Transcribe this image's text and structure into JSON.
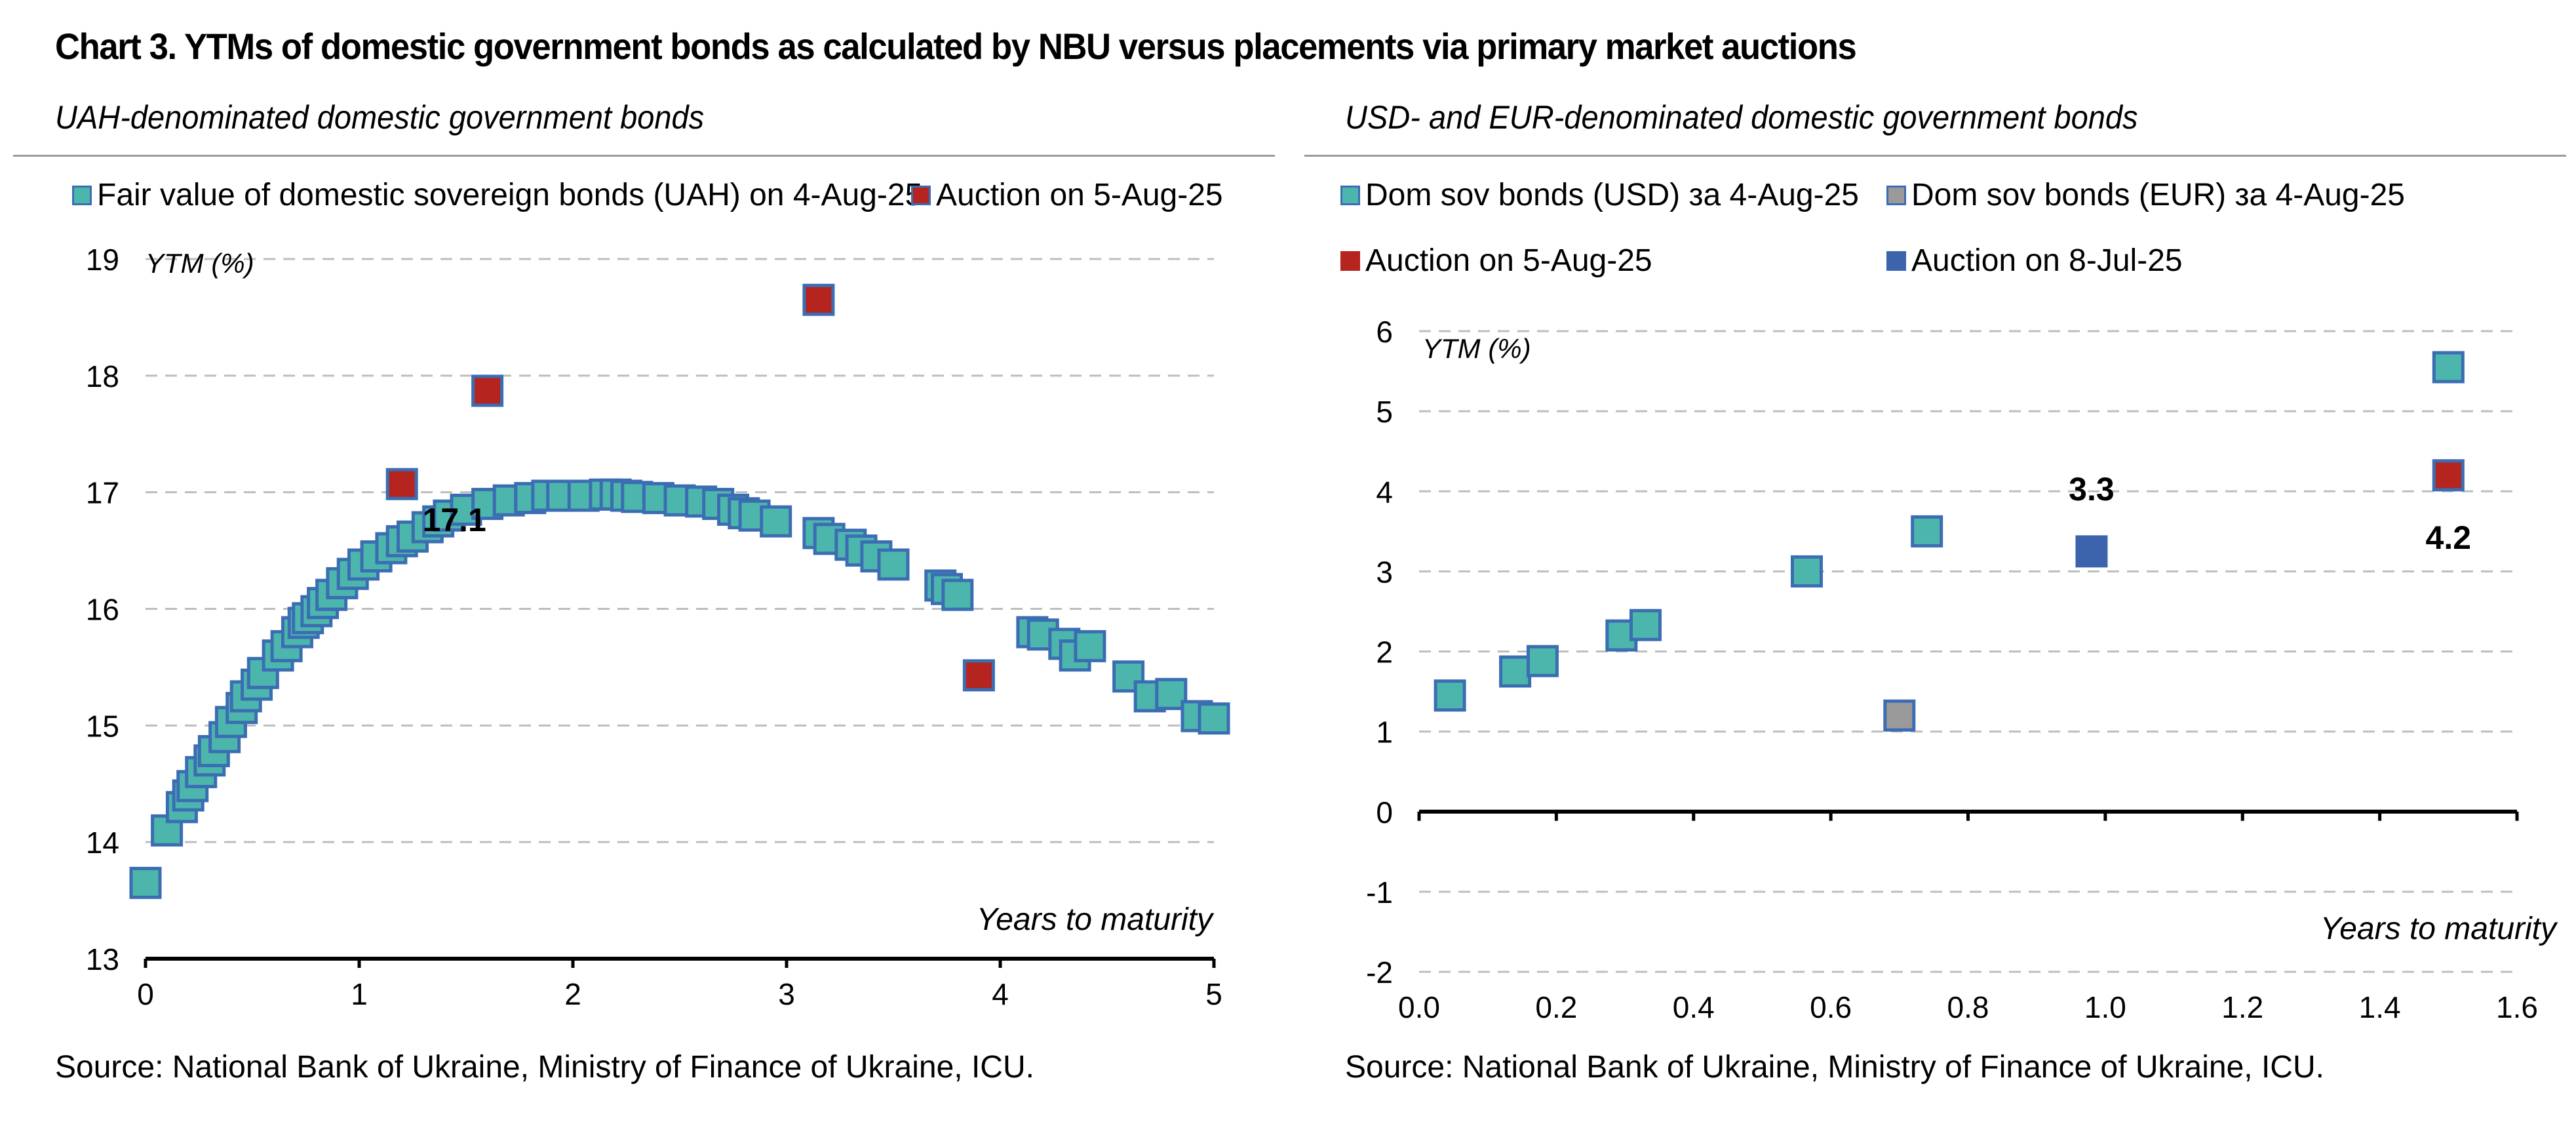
{
  "title": "Chart 3. YTMs of domestic government bonds as calculated by NBU versus placements via primary market auctions",
  "source_text": "Source: National Bank of Ukraine, Ministry of Finance of Ukraine, ICU.",
  "colors": {
    "fair_value": "#4db6ac",
    "marker_border": "#3b6db3",
    "auction_aug": "#b5241e",
    "auction_jul": "#3b64ad",
    "eur": "#9a9a9a",
    "grid": "#bdbdbd"
  },
  "chart_data": [
    {
      "type": "scatter",
      "title": "UAH-denominated domestic government bonds",
      "xlabel": "Years to maturity",
      "ylabel": "YTM (%)",
      "xlim": [
        0,
        5
      ],
      "ylim": [
        13,
        19
      ],
      "x_ticks": [
        "0",
        "1",
        "2",
        "3",
        "4",
        "5"
      ],
      "y_ticks": [
        "13",
        "14",
        "15",
        "16",
        "17",
        "18",
        "19"
      ],
      "grid": true,
      "legend_position": "top",
      "annotations": [
        {
          "text": "17.1",
          "x": 1.2,
          "y": 17.07
        }
      ],
      "series": [
        {
          "name": "Fair value of domestic sovereign bonds (UAH) on 4-Aug-25",
          "color": "#4db6ac",
          "points": [
            [
              0.0,
              13.65
            ],
            [
              0.1,
              14.1
            ],
            [
              0.17,
              14.3
            ],
            [
              0.2,
              14.4
            ],
            [
              0.22,
              14.48
            ],
            [
              0.26,
              14.6
            ],
            [
              0.3,
              14.7
            ],
            [
              0.32,
              14.78
            ],
            [
              0.37,
              14.9
            ],
            [
              0.4,
              15.03
            ],
            [
              0.45,
              15.15
            ],
            [
              0.47,
              15.25
            ],
            [
              0.52,
              15.35
            ],
            [
              0.55,
              15.45
            ],
            [
              0.62,
              15.6
            ],
            [
              0.66,
              15.68
            ],
            [
              0.71,
              15.8
            ],
            [
              0.74,
              15.88
            ],
            [
              0.76,
              15.92
            ],
            [
              0.8,
              15.98
            ],
            [
              0.83,
              16.05
            ],
            [
              0.87,
              16.12
            ],
            [
              0.92,
              16.22
            ],
            [
              0.97,
              16.3
            ],
            [
              1.02,
              16.38
            ],
            [
              1.08,
              16.45
            ],
            [
              1.15,
              16.52
            ],
            [
              1.2,
              16.58
            ],
            [
              1.25,
              16.62
            ],
            [
              1.32,
              16.7
            ],
            [
              1.37,
              16.75
            ],
            [
              1.42,
              16.8
            ],
            [
              1.5,
              16.85
            ],
            [
              1.6,
              16.9
            ],
            [
              1.7,
              16.93
            ],
            [
              1.8,
              16.95
            ],
            [
              1.88,
              16.97
            ],
            [
              1.95,
              16.97
            ],
            [
              2.05,
              16.97
            ],
            [
              2.15,
              16.98
            ],
            [
              2.2,
              16.98
            ],
            [
              2.25,
              16.97
            ],
            [
              2.3,
              16.96
            ],
            [
              2.4,
              16.95
            ],
            [
              2.5,
              16.93
            ],
            [
              2.6,
              16.92
            ],
            [
              2.68,
              16.9
            ],
            [
              2.75,
              16.85
            ],
            [
              2.8,
              16.82
            ],
            [
              2.85,
              16.8
            ],
            [
              2.95,
              16.75
            ],
            [
              3.15,
              16.65
            ],
            [
              3.2,
              16.6
            ],
            [
              3.3,
              16.55
            ],
            [
              3.35,
              16.5
            ],
            [
              3.42,
              16.45
            ],
            [
              3.5,
              16.38
            ],
            [
              3.72,
              16.2
            ],
            [
              3.75,
              16.17
            ],
            [
              3.8,
              16.12
            ],
            [
              4.15,
              15.8
            ],
            [
              4.2,
              15.78
            ],
            [
              4.3,
              15.7
            ],
            [
              4.35,
              15.6
            ],
            [
              4.42,
              15.68
            ],
            [
              4.6,
              15.42
            ],
            [
              4.7,
              15.25
            ],
            [
              4.8,
              15.27
            ],
            [
              4.92,
              15.08
            ],
            [
              5.0,
              15.06
            ]
          ]
        },
        {
          "name": "Auction on 5-Aug-25",
          "color": "#b5241e",
          "points": [
            [
              1.2,
              17.07
            ],
            [
              1.6,
              17.87
            ],
            [
              3.15,
              18.65
            ],
            [
              3.9,
              15.43
            ]
          ]
        }
      ]
    },
    {
      "type": "scatter",
      "title": "USD- and EUR-denominated domestic government bonds",
      "xlabel": "Years to maturity",
      "ylabel": "YTM (%)",
      "xlim": [
        0.0,
        1.6
      ],
      "ylim": [
        -2,
        6
      ],
      "x_ticks": [
        "0.0",
        "0.2",
        "0.4",
        "0.6",
        "0.8",
        "1.0",
        "1.2",
        "1.4",
        "1.6"
      ],
      "y_ticks": [
        "-2",
        "-1",
        "0",
        "1",
        "2",
        "3",
        "4",
        "5",
        "6"
      ],
      "grid": true,
      "legend_position": "top",
      "annotations": [
        {
          "text": "3.3",
          "x": 0.98,
          "y": 3.25
        },
        {
          "text": "4.2",
          "x": 1.5,
          "y": 4.2
        }
      ],
      "series": [
        {
          "name": "Dom sov bonds (USD) за 4-Aug-25",
          "color": "#4db6ac",
          "points": [
            [
              0.045,
              1.45
            ],
            [
              0.14,
              1.75
            ],
            [
              0.18,
              1.88
            ],
            [
              0.295,
              2.2
            ],
            [
              0.33,
              2.33
            ],
            [
              0.565,
              3.0
            ],
            [
              0.74,
              3.5
            ],
            [
              1.5,
              5.55
            ]
          ]
        },
        {
          "name": "Dom sov bonds (EUR) за 4-Aug-25",
          "color": "#9a9a9a",
          "points": [
            [
              0.7,
              1.2
            ]
          ]
        },
        {
          "name": "Auction on 5-Aug-25",
          "color": "#b5241e",
          "points": [
            [
              1.5,
              4.2
            ]
          ]
        },
        {
          "name": "Auction on 8-Jul-25",
          "color": "#3b64ad",
          "points": [
            [
              0.98,
              3.25
            ]
          ]
        }
      ]
    }
  ]
}
